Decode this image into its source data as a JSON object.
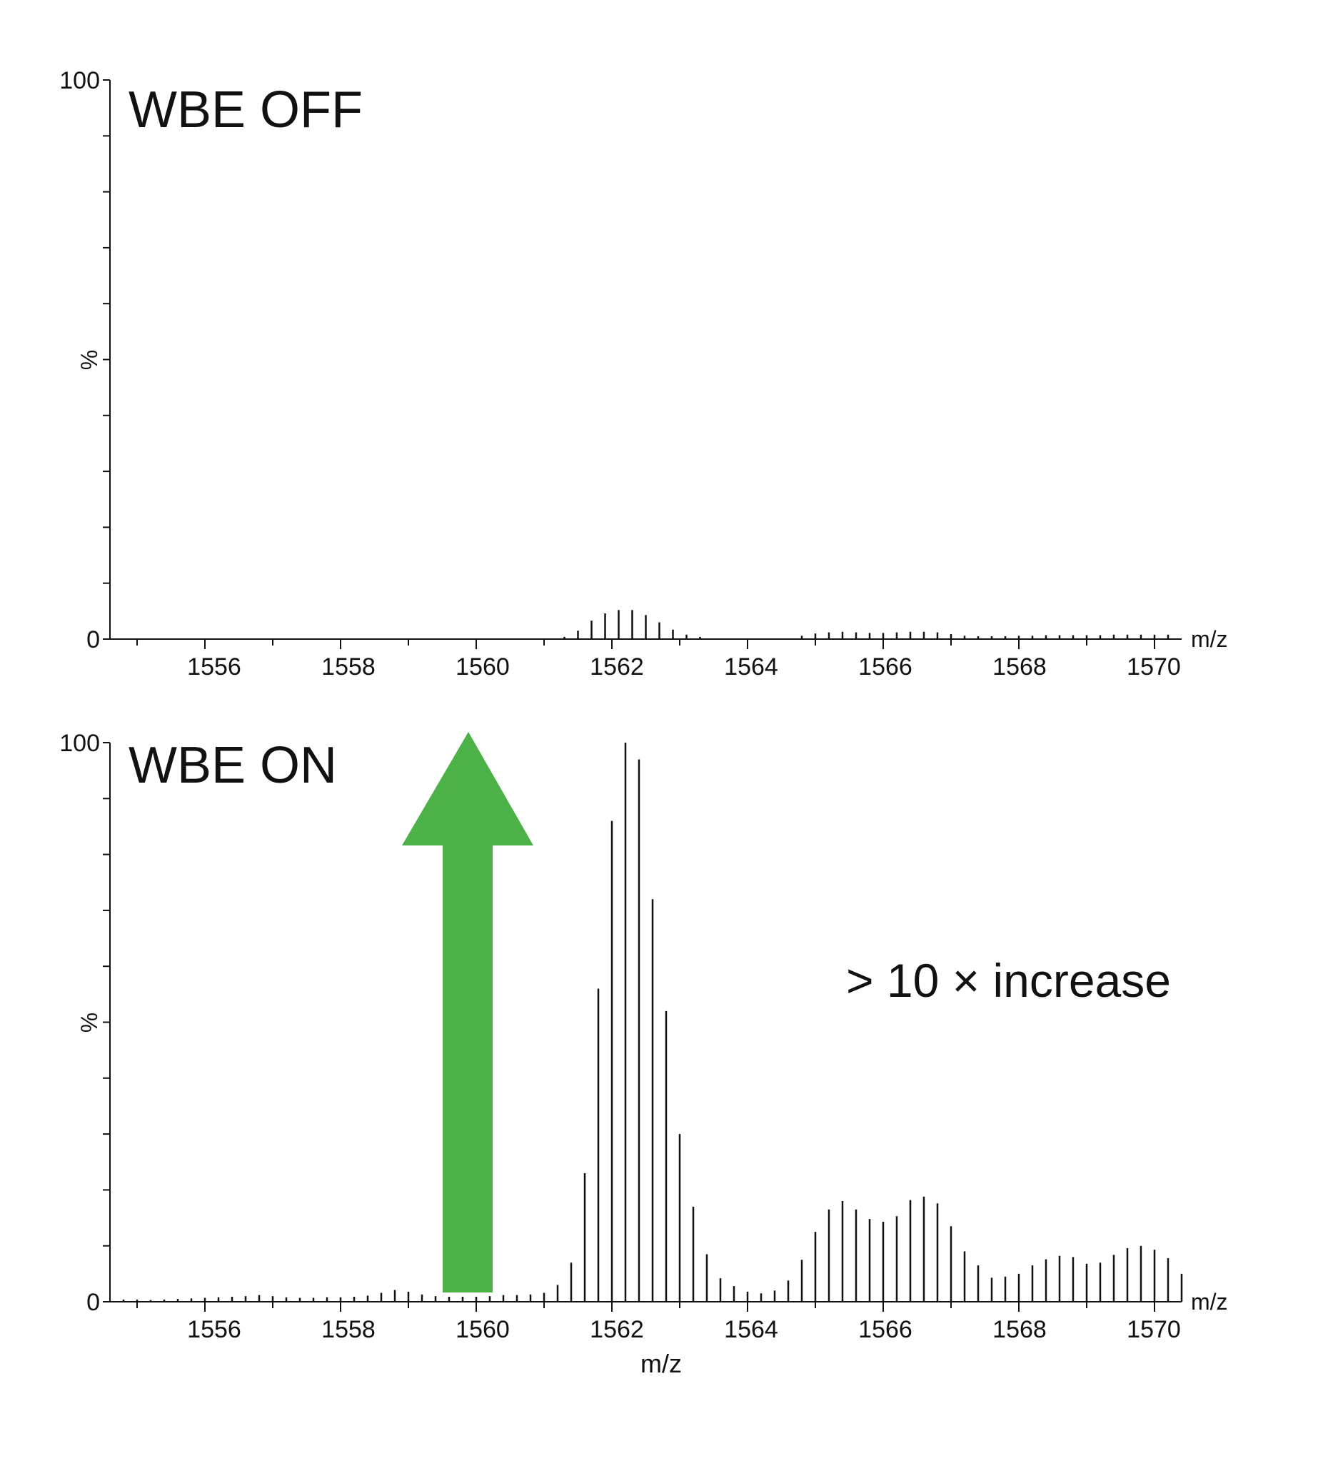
{
  "chart_data": [
    {
      "type": "line",
      "title": "WBE OFF",
      "xlabel": "",
      "ylabel": "%",
      "x_unit_label": "m/z",
      "xlim": [
        1554.6,
        1570.4
      ],
      "ylim": [
        0,
        100
      ],
      "y_ticks": [
        "0",
        "100"
      ],
      "x_ticks": [
        "1556",
        "1558",
        "1560",
        "1562",
        "1564",
        "1566",
        "1568",
        "1570"
      ],
      "x_tick_values": [
        1556,
        1558,
        1560,
        1562,
        1564,
        1566,
        1568,
        1570
      ],
      "grid": false,
      "series": [
        {
          "peaks": [
            {
              "mz": 1561.3,
              "i": 0.4
            },
            {
              "mz": 1561.5,
              "i": 1.5
            },
            {
              "mz": 1561.7,
              "i": 3.3
            },
            {
              "mz": 1561.9,
              "i": 4.6
            },
            {
              "mz": 1562.1,
              "i": 5.2
            },
            {
              "mz": 1562.3,
              "i": 5.2
            },
            {
              "mz": 1562.5,
              "i": 4.3
            },
            {
              "mz": 1562.7,
              "i": 3.0
            },
            {
              "mz": 1562.9,
              "i": 1.7
            },
            {
              "mz": 1563.1,
              "i": 0.8
            },
            {
              "mz": 1563.3,
              "i": 0.4
            },
            {
              "mz": 1564.8,
              "i": 0.6
            },
            {
              "mz": 1565.0,
              "i": 1.0
            },
            {
              "mz": 1565.2,
              "i": 1.2
            },
            {
              "mz": 1565.4,
              "i": 1.3
            },
            {
              "mz": 1565.6,
              "i": 1.2
            },
            {
              "mz": 1565.8,
              "i": 1.1
            },
            {
              "mz": 1566.0,
              "i": 1.1
            },
            {
              "mz": 1566.2,
              "i": 1.2
            },
            {
              "mz": 1566.4,
              "i": 1.3
            },
            {
              "mz": 1566.6,
              "i": 1.3
            },
            {
              "mz": 1566.8,
              "i": 1.2
            },
            {
              "mz": 1567.0,
              "i": 0.9
            },
            {
              "mz": 1567.2,
              "i": 0.6
            },
            {
              "mz": 1567.4,
              "i": 0.5
            },
            {
              "mz": 1567.6,
              "i": 0.5
            },
            {
              "mz": 1567.8,
              "i": 0.5
            },
            {
              "mz": 1568.0,
              "i": 0.6
            },
            {
              "mz": 1568.2,
              "i": 0.6
            },
            {
              "mz": 1568.4,
              "i": 0.7
            },
            {
              "mz": 1568.6,
              "i": 0.7
            },
            {
              "mz": 1568.8,
              "i": 0.7
            },
            {
              "mz": 1569.0,
              "i": 0.7
            },
            {
              "mz": 1569.2,
              "i": 0.7
            },
            {
              "mz": 1569.4,
              "i": 0.8
            },
            {
              "mz": 1569.6,
              "i": 0.8
            },
            {
              "mz": 1569.8,
              "i": 0.8
            },
            {
              "mz": 1570.0,
              "i": 0.8
            },
            {
              "mz": 1570.2,
              "i": 0.8
            }
          ]
        }
      ]
    },
    {
      "type": "line",
      "title": "WBE ON",
      "xlabel": "m/z",
      "ylabel": "%",
      "x_unit_label": "m/z",
      "xlim": [
        1554.6,
        1570.4
      ],
      "ylim": [
        0,
        100
      ],
      "y_ticks": [
        "0",
        "100"
      ],
      "x_ticks": [
        "1556",
        "1558",
        "1560",
        "1562",
        "1564",
        "1566",
        "1568",
        "1570"
      ],
      "x_tick_values": [
        1556,
        1558,
        1560,
        1562,
        1564,
        1566,
        1568,
        1570
      ],
      "grid": false,
      "annotation": "> 10 × increase",
      "arrow_color": "#4cb147",
      "series": [
        {
          "peaks": [
            {
              "mz": 1554.8,
              "i": 0.4
            },
            {
              "mz": 1555.0,
              "i": 0.4
            },
            {
              "mz": 1555.2,
              "i": 0.3
            },
            {
              "mz": 1555.4,
              "i": 0.4
            },
            {
              "mz": 1555.6,
              "i": 0.5
            },
            {
              "mz": 1555.8,
              "i": 0.6
            },
            {
              "mz": 1556.0,
              "i": 0.7
            },
            {
              "mz": 1556.2,
              "i": 0.8
            },
            {
              "mz": 1556.4,
              "i": 0.9
            },
            {
              "mz": 1556.6,
              "i": 1.0
            },
            {
              "mz": 1556.8,
              "i": 1.2
            },
            {
              "mz": 1557.0,
              "i": 1.0
            },
            {
              "mz": 1557.2,
              "i": 0.8
            },
            {
              "mz": 1557.4,
              "i": 0.7
            },
            {
              "mz": 1557.6,
              "i": 0.7
            },
            {
              "mz": 1557.8,
              "i": 0.8
            },
            {
              "mz": 1558.0,
              "i": 0.8
            },
            {
              "mz": 1558.2,
              "i": 0.9
            },
            {
              "mz": 1558.4,
              "i": 1.1
            },
            {
              "mz": 1558.6,
              "i": 1.6
            },
            {
              "mz": 1558.8,
              "i": 2.1
            },
            {
              "mz": 1559.0,
              "i": 1.8
            },
            {
              "mz": 1559.2,
              "i": 1.3
            },
            {
              "mz": 1559.4,
              "i": 1.0
            },
            {
              "mz": 1559.6,
              "i": 0.9
            },
            {
              "mz": 1559.8,
              "i": 0.9
            },
            {
              "mz": 1560.0,
              "i": 0.9
            },
            {
              "mz": 1560.2,
              "i": 1.0
            },
            {
              "mz": 1560.4,
              "i": 1.2
            },
            {
              "mz": 1560.6,
              "i": 1.2
            },
            {
              "mz": 1560.8,
              "i": 1.3
            },
            {
              "mz": 1561.0,
              "i": 1.6
            },
            {
              "mz": 1561.2,
              "i": 3.0
            },
            {
              "mz": 1561.4,
              "i": 7.0
            },
            {
              "mz": 1561.6,
              "i": 23.0
            },
            {
              "mz": 1561.8,
              "i": 56.0
            },
            {
              "mz": 1562.0,
              "i": 86.0
            },
            {
              "mz": 1562.2,
              "i": 100.0
            },
            {
              "mz": 1562.4,
              "i": 97.0
            },
            {
              "mz": 1562.6,
              "i": 72.0
            },
            {
              "mz": 1562.8,
              "i": 52.0
            },
            {
              "mz": 1563.0,
              "i": 30.0
            },
            {
              "mz": 1563.2,
              "i": 17.0
            },
            {
              "mz": 1563.4,
              "i": 8.5
            },
            {
              "mz": 1563.6,
              "i": 4.2
            },
            {
              "mz": 1563.8,
              "i": 2.8
            },
            {
              "mz": 1564.0,
              "i": 1.8
            },
            {
              "mz": 1564.2,
              "i": 1.5
            },
            {
              "mz": 1564.4,
              "i": 2.0
            },
            {
              "mz": 1564.6,
              "i": 3.8
            },
            {
              "mz": 1564.8,
              "i": 7.5
            },
            {
              "mz": 1565.0,
              "i": 12.5
            },
            {
              "mz": 1565.2,
              "i": 16.5
            },
            {
              "mz": 1565.4,
              "i": 18.0
            },
            {
              "mz": 1565.6,
              "i": 16.5
            },
            {
              "mz": 1565.8,
              "i": 14.8
            },
            {
              "mz": 1566.0,
              "i": 14.3
            },
            {
              "mz": 1566.2,
              "i": 15.3
            },
            {
              "mz": 1566.4,
              "i": 18.2
            },
            {
              "mz": 1566.6,
              "i": 18.8
            },
            {
              "mz": 1566.8,
              "i": 17.6
            },
            {
              "mz": 1567.0,
              "i": 13.5
            },
            {
              "mz": 1567.2,
              "i": 9.0
            },
            {
              "mz": 1567.4,
              "i": 6.5
            },
            {
              "mz": 1567.6,
              "i": 4.3
            },
            {
              "mz": 1567.8,
              "i": 4.5
            },
            {
              "mz": 1568.0,
              "i": 5.0
            },
            {
              "mz": 1568.2,
              "i": 6.5
            },
            {
              "mz": 1568.4,
              "i": 7.6
            },
            {
              "mz": 1568.6,
              "i": 8.2
            },
            {
              "mz": 1568.8,
              "i": 8.0
            },
            {
              "mz": 1569.0,
              "i": 6.8
            },
            {
              "mz": 1569.2,
              "i": 7.0
            },
            {
              "mz": 1569.4,
              "i": 8.4
            },
            {
              "mz": 1569.6,
              "i": 9.6
            },
            {
              "mz": 1569.8,
              "i": 10.0
            },
            {
              "mz": 1570.0,
              "i": 9.3
            },
            {
              "mz": 1570.2,
              "i": 7.8
            },
            {
              "mz": 1570.4,
              "i": 5.0
            }
          ]
        }
      ]
    }
  ]
}
